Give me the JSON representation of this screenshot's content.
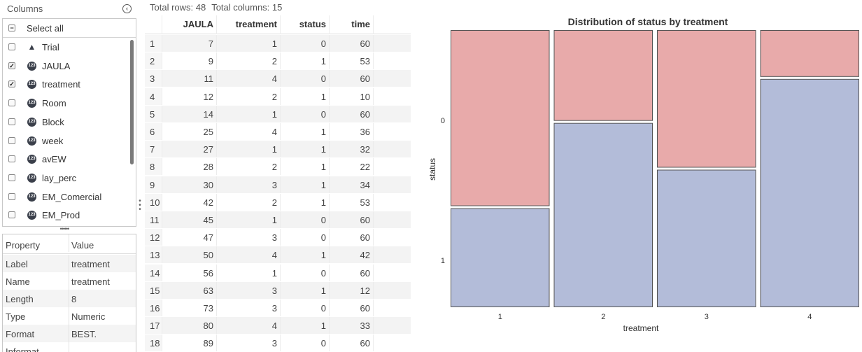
{
  "columns_panel": {
    "title": "Columns",
    "select_all_label": "Select all",
    "items": [
      {
        "label": "Trial",
        "type_icon": "char-type-icon",
        "checked": false
      },
      {
        "label": "JAULA",
        "type_icon": "numeric-type-icon",
        "checked": true
      },
      {
        "label": "treatment",
        "type_icon": "numeric-type-icon",
        "checked": true
      },
      {
        "label": "Room",
        "type_icon": "numeric-type-icon",
        "checked": false
      },
      {
        "label": "Block",
        "type_icon": "numeric-type-icon",
        "checked": false
      },
      {
        "label": "week",
        "type_icon": "numeric-type-icon",
        "checked": false
      },
      {
        "label": "avEW",
        "type_icon": "numeric-type-icon",
        "checked": false
      },
      {
        "label": "lay_perc",
        "type_icon": "numeric-type-icon",
        "checked": false
      },
      {
        "label": "EM_Comercial",
        "type_icon": "numeric-type-icon",
        "checked": false
      },
      {
        "label": "EM_Prod",
        "type_icon": "numeric-type-icon",
        "checked": false
      }
    ]
  },
  "properties": {
    "header": {
      "property": "Property",
      "value": "Value"
    },
    "rows": [
      {
        "property": "Label",
        "value": "treatment"
      },
      {
        "property": "Name",
        "value": "treatment"
      },
      {
        "property": "Length",
        "value": "8"
      },
      {
        "property": "Type",
        "value": "Numeric"
      },
      {
        "property": "Format",
        "value": "BEST."
      },
      {
        "property": "Informat",
        "value": ""
      }
    ]
  },
  "table": {
    "total_rows": "Total rows: 48",
    "total_columns": "Total columns: 15",
    "headers": [
      "JAULA",
      "treatment",
      "status",
      "time"
    ],
    "rows": [
      [
        "1",
        "7",
        "1",
        "0",
        "60"
      ],
      [
        "2",
        "9",
        "2",
        "1",
        "53"
      ],
      [
        "3",
        "11",
        "4",
        "0",
        "60"
      ],
      [
        "4",
        "12",
        "2",
        "1",
        "10"
      ],
      [
        "5",
        "14",
        "1",
        "0",
        "60"
      ],
      [
        "6",
        "25",
        "4",
        "1",
        "36"
      ],
      [
        "7",
        "27",
        "1",
        "1",
        "32"
      ],
      [
        "8",
        "28",
        "2",
        "1",
        "22"
      ],
      [
        "9",
        "30",
        "3",
        "1",
        "34"
      ],
      [
        "10",
        "42",
        "2",
        "1",
        "53"
      ],
      [
        "11",
        "45",
        "1",
        "0",
        "60"
      ],
      [
        "12",
        "47",
        "3",
        "0",
        "60"
      ],
      [
        "13",
        "50",
        "4",
        "1",
        "42"
      ],
      [
        "14",
        "56",
        "1",
        "0",
        "60"
      ],
      [
        "15",
        "63",
        "3",
        "1",
        "12"
      ],
      [
        "16",
        "73",
        "3",
        "0",
        "60"
      ],
      [
        "17",
        "80",
        "4",
        "1",
        "33"
      ],
      [
        "18",
        "89",
        "3",
        "0",
        "60"
      ]
    ]
  },
  "chart_data": {
    "type": "mosaic",
    "title": "Distribution of status by treatment",
    "xlabel": "treatment",
    "ylabel": "status",
    "categories": [
      "1",
      "2",
      "3",
      "4"
    ],
    "category_widths": [
      0.25,
      0.25,
      0.25,
      0.25
    ],
    "status_levels": [
      "0",
      "1"
    ],
    "status_axis_ticks": [
      "0",
      "1"
    ],
    "proportions": {
      "0": [
        0.64,
        0.33,
        0.5,
        0.17
      ],
      "1": [
        0.36,
        0.67,
        0.5,
        0.83
      ]
    },
    "colors": {
      "0": "#e8aaaa",
      "1": "#b3bcd9"
    },
    "border_color": "#555555"
  }
}
